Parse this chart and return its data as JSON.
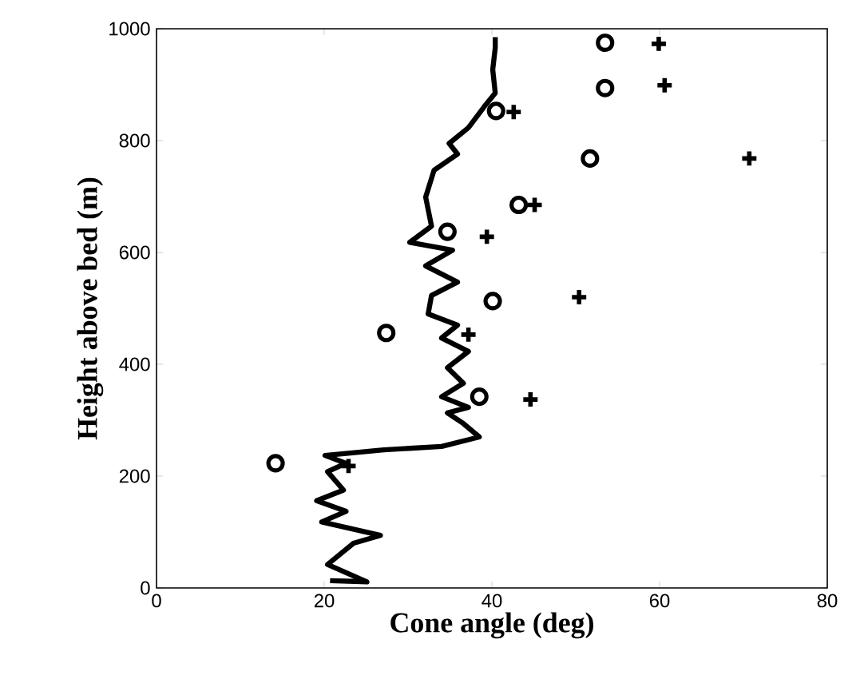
{
  "chart_data": {
    "type": "scatter",
    "xlabel": "Cone angle (deg)",
    "ylabel": "Height above bed (m)",
    "xlim": [
      0,
      80
    ],
    "ylim": [
      0,
      1000
    ],
    "xticks": [
      0,
      20,
      40,
      60,
      80
    ],
    "yticks": [
      0,
      200,
      400,
      600,
      800,
      1000
    ],
    "series": [
      {
        "type": "line",
        "color": "#000000",
        "marker": "none",
        "x": [
          20.7,
          25.1,
          20.4,
          23.5,
          26.7,
          19.7,
          22.6,
          19.1,
          22.3,
          20.4,
          22.6,
          20.1,
          27.1,
          34.0,
          38.5,
          36.6,
          34.7,
          37.2,
          34.0,
          36.6,
          34.7,
          37.2,
          34.0,
          35.9,
          32.4,
          32.8,
          35.9,
          32.1,
          35.3,
          30.2,
          32.8,
          32.1,
          33.1,
          35.9,
          34.9,
          37.2,
          39.1,
          40.4,
          40.1,
          40.4,
          40.4
        ],
        "values": [
          13,
          11,
          42,
          80,
          94,
          118,
          137,
          156,
          175,
          208,
          223,
          237,
          247,
          253,
          270,
          294,
          313,
          323,
          342,
          366,
          394,
          423,
          447,
          470,
          490,
          523,
          547,
          576,
          604,
          618,
          647,
          699,
          747,
          776,
          795,
          823,
          861,
          885,
          927,
          966,
          985
        ]
      },
      {
        "color": "#000000",
        "marker": "circle",
        "x": [
          14.2,
          27.4,
          38.5,
          40.1,
          34.7,
          43.2,
          51.7,
          40.5,
          53.5,
          53.5
        ],
        "values": [
          223,
          456,
          342,
          513,
          637,
          685,
          768,
          853,
          894,
          975
        ]
      },
      {
        "color": "#000000",
        "marker": "cross",
        "x": [
          22.9,
          44.6,
          37.2,
          50.4,
          39.4,
          45.1,
          70.7,
          42.6,
          60.6,
          59.9
        ],
        "values": [
          218,
          337,
          453,
          520,
          628,
          685,
          768,
          851,
          899,
          973
        ]
      }
    ]
  }
}
